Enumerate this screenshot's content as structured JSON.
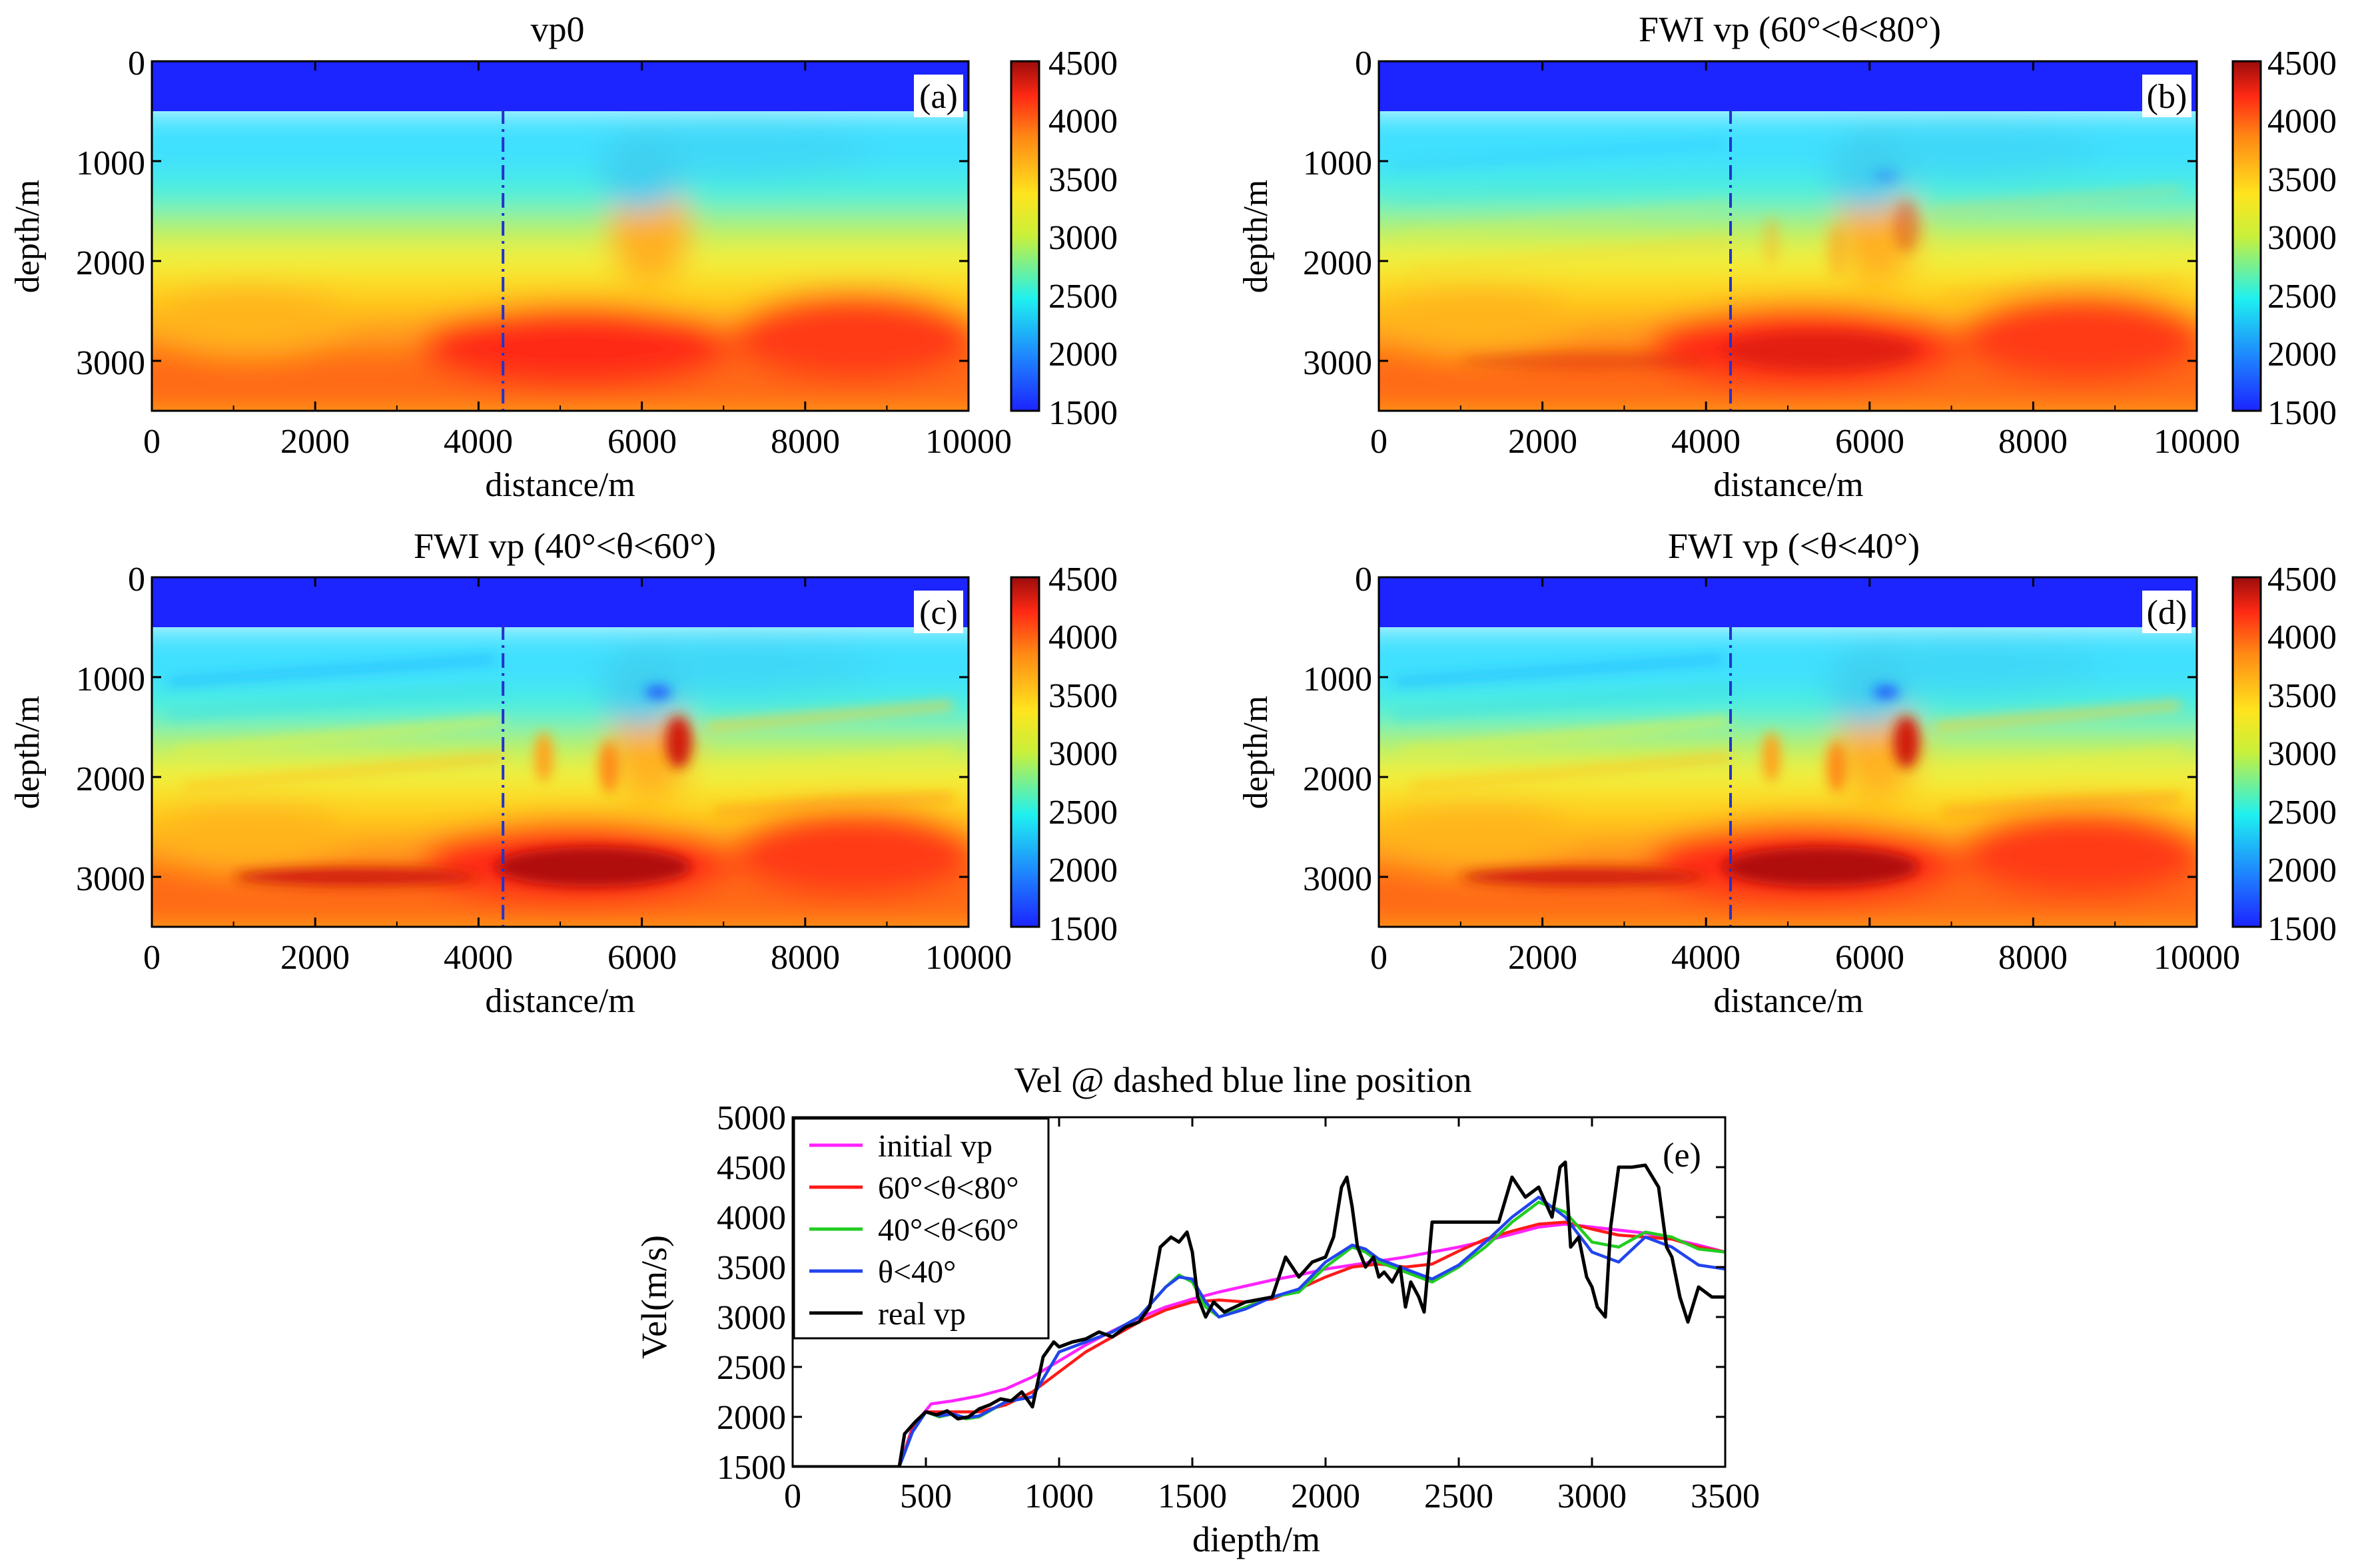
{
  "chart_data": [
    {
      "type": "heatmap",
      "panel": "a",
      "title": "vp0",
      "panel_label": "(a)",
      "xlabel": "distance/m",
      "ylabel": "depth/m",
      "xlim": [
        0,
        10000
      ],
      "ylim": [
        0,
        3500
      ],
      "xticks": [
        "0",
        "2000",
        "4000",
        "6000",
        "8000",
        "10000"
      ],
      "yticks": [
        "0",
        "1000",
        "2000",
        "3000"
      ],
      "colorbar": {
        "min": 1500,
        "max": 4500,
        "ticks": [
          "4500",
          "4000",
          "3500",
          "3000",
          "2500",
          "2000",
          "1500"
        ]
      },
      "dashed_line_x": 4300,
      "detail": 0
    },
    {
      "type": "heatmap",
      "panel": "b",
      "title": "FWI vp (60°<θ<80°)",
      "panel_label": "(b)",
      "xlabel": "distance/m",
      "ylabel": "depth/m",
      "xlim": [
        0,
        10000
      ],
      "ylim": [
        0,
        3500
      ],
      "xticks": [
        "0",
        "2000",
        "4000",
        "6000",
        "8000",
        "10000"
      ],
      "yticks": [
        "0",
        "1000",
        "2000",
        "3000"
      ],
      "colorbar": {
        "min": 1500,
        "max": 4500,
        "ticks": [
          "4500",
          "4000",
          "3500",
          "3000",
          "2500",
          "2000",
          "1500"
        ]
      },
      "dashed_line_x": 4300,
      "detail": 0.35
    },
    {
      "type": "heatmap",
      "panel": "c",
      "title": "FWI vp (40°<θ<60°)",
      "panel_label": "(c)",
      "xlabel": "distance/m",
      "ylabel": "depth/m",
      "xlim": [
        0,
        10000
      ],
      "ylim": [
        0,
        3500
      ],
      "xticks": [
        "0",
        "2000",
        "4000",
        "6000",
        "8000",
        "10000"
      ],
      "yticks": [
        "0",
        "1000",
        "2000",
        "3000"
      ],
      "colorbar": {
        "min": 1500,
        "max": 4500,
        "ticks": [
          "4500",
          "4000",
          "3500",
          "3000",
          "2500",
          "2000",
          "1500"
        ]
      },
      "dashed_line_x": 4300,
      "detail": 1
    },
    {
      "type": "heatmap",
      "panel": "d",
      "title": "FWI vp (<θ<40°)",
      "panel_label": "(d)",
      "xlabel": "distance/m",
      "ylabel": "depth/m",
      "xlim": [
        0,
        10000
      ],
      "ylim": [
        0,
        3500
      ],
      "xticks": [
        "0",
        "2000",
        "4000",
        "6000",
        "8000",
        "10000"
      ],
      "yticks": [
        "0",
        "1000",
        "2000",
        "3000"
      ],
      "colorbar": {
        "min": 1500,
        "max": 4500,
        "ticks": [
          "4500",
          "4000",
          "3500",
          "3000",
          "2500",
          "2000",
          "1500"
        ]
      },
      "dashed_line_x": 4300,
      "detail": 1
    },
    {
      "type": "line",
      "panel": "e",
      "title": "Vel @ dashed blue line position",
      "panel_label": "(e)",
      "xlabel": "diepth/m",
      "ylabel": "Vel(m/s)",
      "xlim": [
        0,
        3500
      ],
      "ylim": [
        1500,
        5000
      ],
      "xticks": [
        "0",
        "500",
        "1000",
        "1500",
        "2000",
        "2500",
        "3000",
        "3500"
      ],
      "yticks": [
        "5000",
        "4500",
        "4000",
        "3500",
        "3000",
        "2500",
        "2000",
        "1500"
      ],
      "legend_position": "top-left",
      "series": [
        {
          "name": "initial vp",
          "color": "#ff22ff",
          "x": [
            0,
            400,
            450,
            520,
            600,
            700,
            800,
            900,
            1000,
            1100,
            1200,
            1300,
            1400,
            1500,
            1600,
            1700,
            1800,
            1900,
            2000,
            2100,
            2200,
            2300,
            2400,
            2500,
            2600,
            2700,
            2800,
            2900,
            3000,
            3100,
            3200,
            3300,
            3400,
            3500
          ],
          "y": [
            1500,
            1500,
            1900,
            2130,
            2160,
            2210,
            2280,
            2400,
            2560,
            2720,
            2860,
            2990,
            3100,
            3180,
            3250,
            3310,
            3370,
            3420,
            3480,
            3520,
            3560,
            3600,
            3650,
            3700,
            3760,
            3830,
            3900,
            3930,
            3900,
            3870,
            3840,
            3780,
            3720,
            3650
          ]
        },
        {
          "name": "60°<θ<80°",
          "color": "#ff1a1a",
          "x": [
            0,
            400,
            450,
            500,
            600,
            700,
            800,
            900,
            1000,
            1100,
            1200,
            1300,
            1400,
            1500,
            1600,
            1700,
            1800,
            1900,
            2000,
            2100,
            2200,
            2300,
            2400,
            2500,
            2600,
            2700,
            2800,
            2900,
            3000,
            3100,
            3200,
            3300,
            3400,
            3500
          ],
          "y": [
            1500,
            1500,
            1880,
            2050,
            2050,
            2050,
            2120,
            2250,
            2450,
            2650,
            2800,
            2950,
            3070,
            3150,
            3170,
            3150,
            3180,
            3280,
            3400,
            3500,
            3530,
            3500,
            3530,
            3660,
            3780,
            3860,
            3930,
            3950,
            3880,
            3820,
            3800,
            3780,
            3700,
            3650
          ]
        },
        {
          "name": "40°<θ<60°",
          "color": "#22cc22",
          "x": [
            0,
            400,
            450,
            500,
            550,
            600,
            650,
            700,
            800,
            900,
            1000,
            1100,
            1200,
            1300,
            1400,
            1450,
            1500,
            1550,
            1600,
            1700,
            1800,
            1900,
            2000,
            2100,
            2150,
            2200,
            2300,
            2400,
            2500,
            2600,
            2700,
            2800,
            2900,
            3000,
            3100,
            3200,
            3300,
            3400,
            3500
          ],
          "y": [
            1500,
            1500,
            1850,
            2050,
            2000,
            2030,
            1980,
            2000,
            2150,
            2200,
            2650,
            2750,
            2850,
            3000,
            3300,
            3420,
            3350,
            3100,
            3000,
            3100,
            3200,
            3250,
            3500,
            3700,
            3650,
            3550,
            3450,
            3350,
            3500,
            3700,
            3950,
            4150,
            4050,
            3750,
            3700,
            3850,
            3800,
            3680,
            3650
          ]
        },
        {
          "name": "θ<40°",
          "color": "#2244ee",
          "x": [
            0,
            400,
            450,
            500,
            550,
            600,
            650,
            700,
            800,
            900,
            1000,
            1100,
            1200,
            1300,
            1400,
            1450,
            1500,
            1550,
            1600,
            1700,
            1800,
            1900,
            2000,
            2100,
            2150,
            2200,
            2300,
            2400,
            2500,
            2600,
            2700,
            2800,
            2900,
            3000,
            3100,
            3200,
            3300,
            3400,
            3500
          ],
          "y": [
            1500,
            1500,
            1850,
            2050,
            2010,
            2030,
            1990,
            2010,
            2150,
            2200,
            2650,
            2750,
            2850,
            3000,
            3300,
            3400,
            3380,
            3150,
            3000,
            3080,
            3200,
            3280,
            3550,
            3720,
            3680,
            3580,
            3480,
            3380,
            3520,
            3750,
            4000,
            4200,
            4000,
            3650,
            3550,
            3800,
            3700,
            3520,
            3480
          ]
        },
        {
          "name": "real vp",
          "color": "#000000",
          "x": [
            0,
            400,
            420,
            460,
            500,
            540,
            580,
            620,
            660,
            700,
            740,
            780,
            820,
            860,
            900,
            940,
            980,
            1000,
            1050,
            1100,
            1150,
            1200,
            1250,
            1300,
            1340,
            1380,
            1420,
            1450,
            1480,
            1500,
            1520,
            1550,
            1580,
            1620,
            1700,
            1800,
            1850,
            1900,
            1950,
            2000,
            2030,
            2060,
            2080,
            2100,
            2120,
            2150,
            2180,
            2200,
            2220,
            2250,
            2280,
            2300,
            2320,
            2350,
            2370,
            2400,
            2450,
            2500,
            2550,
            2600,
            2650,
            2700,
            2750,
            2800,
            2850,
            2880,
            2900,
            2920,
            2950,
            2980,
            3000,
            3020,
            3050,
            3070,
            3100,
            3150,
            3200,
            3250,
            3280,
            3300,
            3330,
            3360,
            3400,
            3450,
            3500
          ],
          "y": [
            1500,
            1500,
            1830,
            1950,
            2050,
            2020,
            2060,
            1980,
            2000,
            2080,
            2120,
            2180,
            2160,
            2250,
            2100,
            2600,
            2750,
            2700,
            2750,
            2780,
            2850,
            2800,
            2900,
            2950,
            3100,
            3700,
            3800,
            3750,
            3850,
            3650,
            3200,
            3000,
            3150,
            3050,
            3150,
            3200,
            3600,
            3400,
            3550,
            3600,
            3800,
            4300,
            4400,
            4100,
            3700,
            3500,
            3600,
            3400,
            3450,
            3350,
            3500,
            3100,
            3350,
            3200,
            3050,
            3950,
            3950,
            3950,
            3950,
            3950,
            3950,
            4400,
            4200,
            4300,
            4000,
            4500,
            4550,
            3700,
            3800,
            3400,
            3300,
            3100,
            3000,
            3900,
            4500,
            4500,
            4520,
            4300,
            3700,
            3600,
            3200,
            2950,
            3300,
            3200,
            3200
          ]
        }
      ]
    }
  ]
}
